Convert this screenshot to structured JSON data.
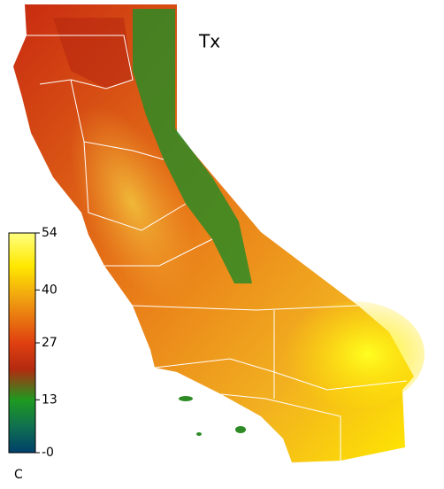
{
  "map": {
    "title": "Tx",
    "colorbar": {
      "lim": [
        0,
        54
      ],
      "ticks": [
        54,
        40,
        27,
        13,
        {
          "value": 0,
          "label": "-0"
        }
      ],
      "unit": "C"
    }
  }
}
